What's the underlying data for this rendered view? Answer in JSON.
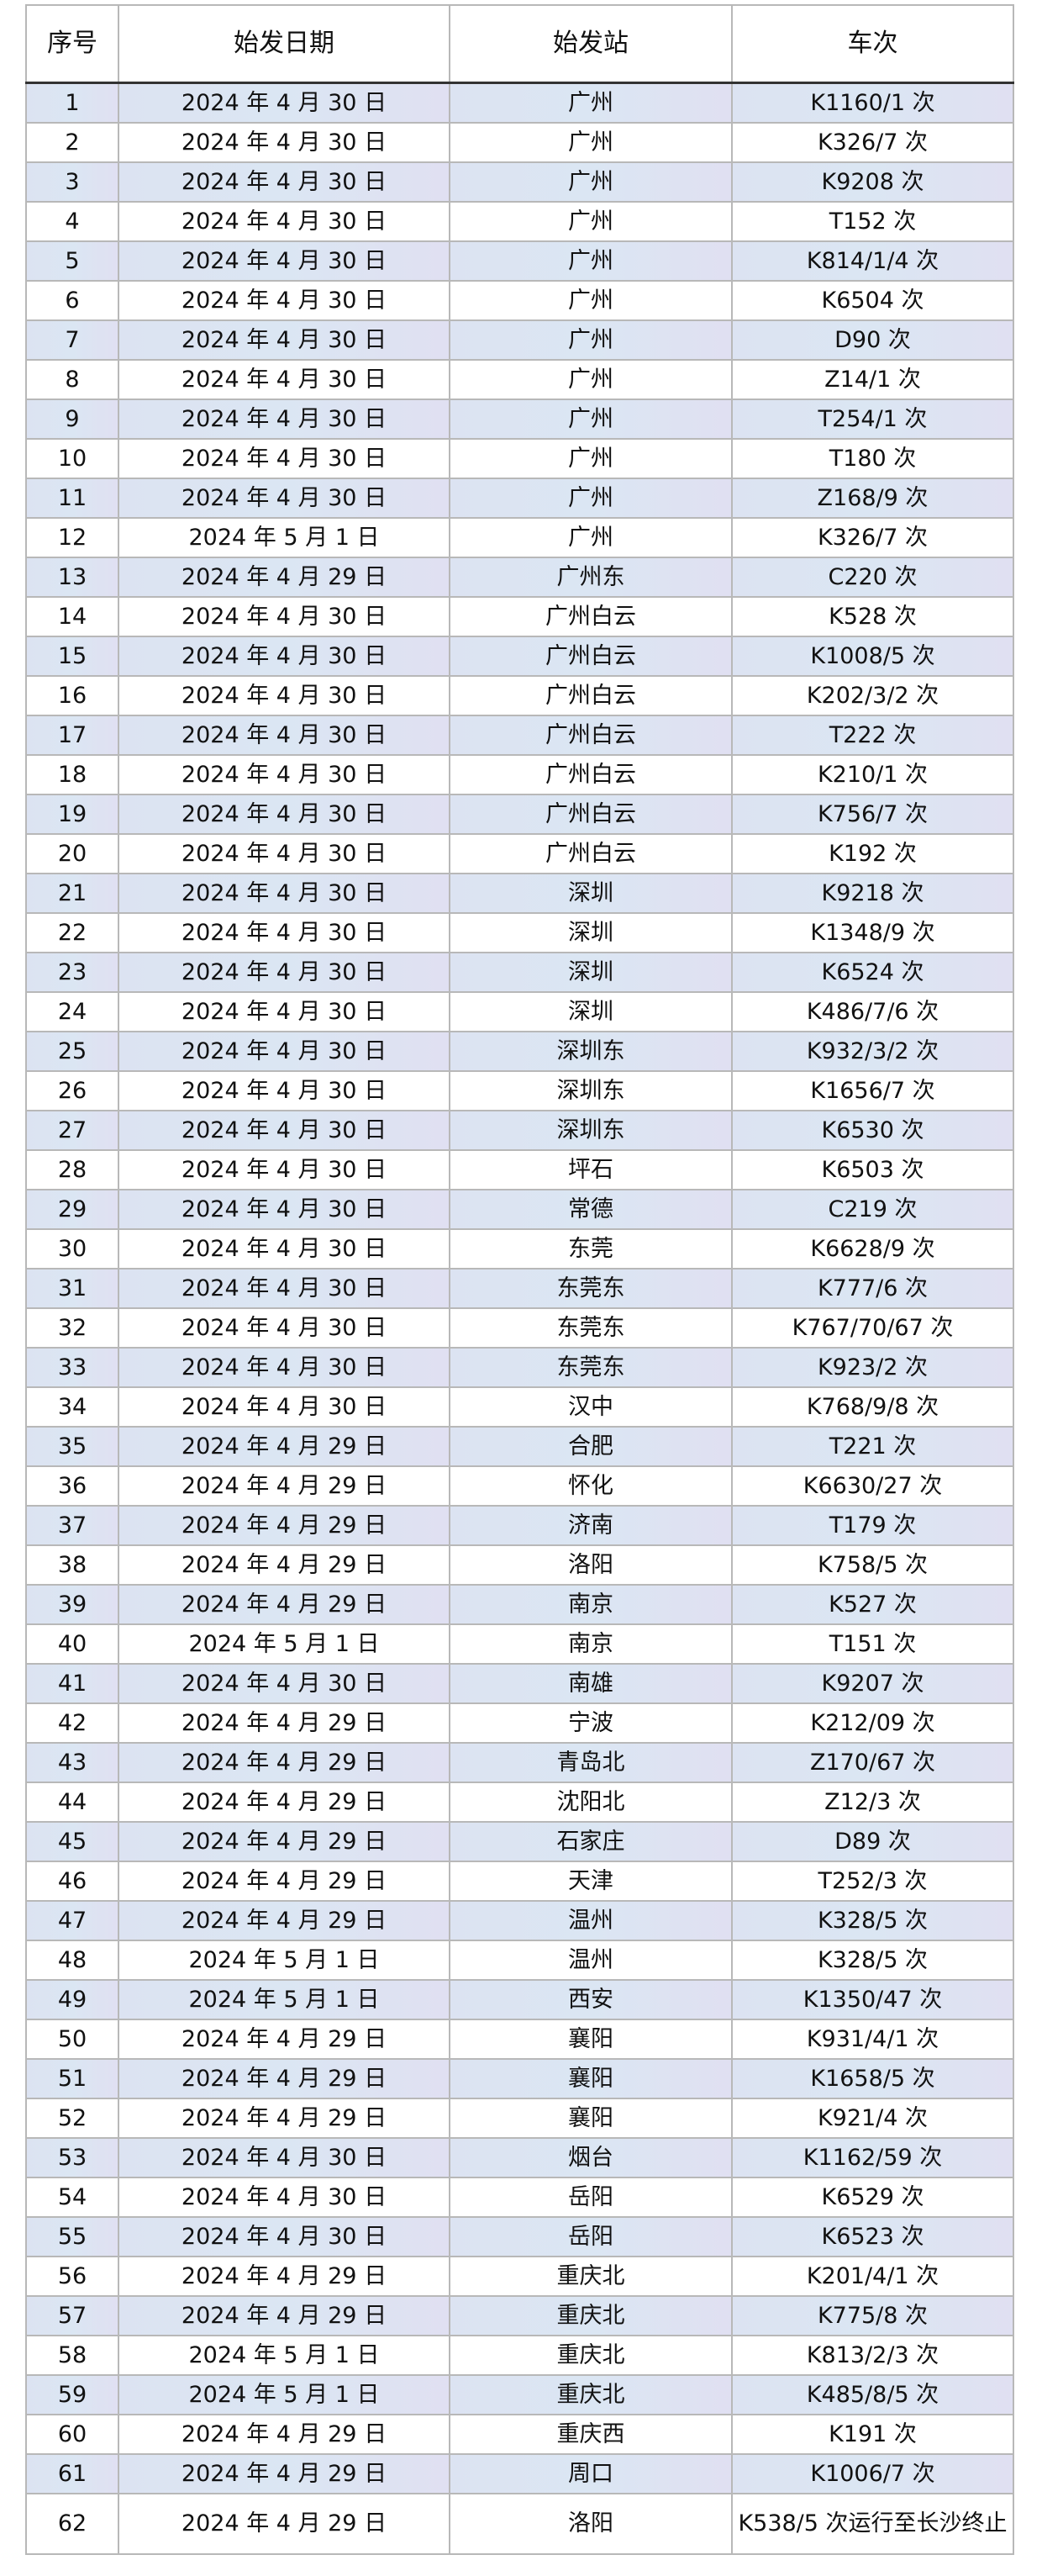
{
  "table": {
    "headers": [
      "序号",
      "始发日期",
      "始发站",
      "车次"
    ],
    "rows": [
      [
        "1",
        "2024 年 4 月 30 日",
        "广州",
        "K1160/1 次"
      ],
      [
        "2",
        "2024 年 4 月 30 日",
        "广州",
        "K326/7 次"
      ],
      [
        "3",
        "2024 年 4 月 30 日",
        "广州",
        "K9208 次"
      ],
      [
        "4",
        "2024 年 4 月 30 日",
        "广州",
        "T152 次"
      ],
      [
        "5",
        "2024 年 4 月 30 日",
        "广州",
        "K814/1/4 次"
      ],
      [
        "6",
        "2024 年 4 月 30 日",
        "广州",
        "K6504 次"
      ],
      [
        "7",
        "2024 年 4 月 30 日",
        "广州",
        "D90 次"
      ],
      [
        "8",
        "2024 年 4 月 30 日",
        "广州",
        "Z14/1 次"
      ],
      [
        "9",
        "2024 年 4 月 30 日",
        "广州",
        "T254/1 次"
      ],
      [
        "10",
        "2024 年 4 月 30 日",
        "广州",
        "T180 次"
      ],
      [
        "11",
        "2024 年 4 月 30 日",
        "广州",
        "Z168/9 次"
      ],
      [
        "12",
        "2024 年 5 月 1 日",
        "广州",
        "K326/7 次"
      ],
      [
        "13",
        "2024 年 4 月 29 日",
        "广州东",
        "C220 次"
      ],
      [
        "14",
        "2024 年 4 月 30 日",
        "广州白云",
        "K528 次"
      ],
      [
        "15",
        "2024 年 4 月 30 日",
        "广州白云",
        "K1008/5 次"
      ],
      [
        "16",
        "2024 年 4 月 30 日",
        "广州白云",
        "K202/3/2 次"
      ],
      [
        "17",
        "2024 年 4 月 30 日",
        "广州白云",
        "T222 次"
      ],
      [
        "18",
        "2024 年 4 月 30 日",
        "广州白云",
        "K210/1 次"
      ],
      [
        "19",
        "2024 年 4 月 30 日",
        "广州白云",
        "K756/7 次"
      ],
      [
        "20",
        "2024 年 4 月 30 日",
        "广州白云",
        "K192 次"
      ],
      [
        "21",
        "2024 年 4 月 30 日",
        "深圳",
        "K9218 次"
      ],
      [
        "22",
        "2024 年 4 月 30 日",
        "深圳",
        "K1348/9 次"
      ],
      [
        "23",
        "2024 年 4 月 30 日",
        "深圳",
        "K6524 次"
      ],
      [
        "24",
        "2024 年 4 月 30 日",
        "深圳",
        "K486/7/6 次"
      ],
      [
        "25",
        "2024 年 4 月 30 日",
        "深圳东",
        "K932/3/2 次"
      ],
      [
        "26",
        "2024 年 4 月 30 日",
        "深圳东",
        "K1656/7 次"
      ],
      [
        "27",
        "2024 年 4 月 30 日",
        "深圳东",
        "K6530 次"
      ],
      [
        "28",
        "2024 年 4 月 30 日",
        "坪石",
        "K6503 次"
      ],
      [
        "29",
        "2024 年 4 月 30 日",
        "常德",
        "C219 次"
      ],
      [
        "30",
        "2024 年 4 月 30 日",
        "东莞",
        "K6628/9 次"
      ],
      [
        "31",
        "2024 年 4 月 30 日",
        "东莞东",
        "K777/6 次"
      ],
      [
        "32",
        "2024 年 4 月 30 日",
        "东莞东",
        "K767/70/67 次"
      ],
      [
        "33",
        "2024 年 4 月 30 日",
        "东莞东",
        "K923/2 次"
      ],
      [
        "34",
        "2024 年 4 月 30 日",
        "汉中",
        "K768/9/8 次"
      ],
      [
        "35",
        "2024 年 4 月 29 日",
        "合肥",
        "T221 次"
      ],
      [
        "36",
        "2024 年 4 月 29 日",
        "怀化",
        "K6630/27 次"
      ],
      [
        "37",
        "2024 年 4 月 29 日",
        "济南",
        "T179 次"
      ],
      [
        "38",
        "2024 年 4 月 29 日",
        "洛阳",
        "K758/5 次"
      ],
      [
        "39",
        "2024 年 4 月 29 日",
        "南京",
        "K527 次"
      ],
      [
        "40",
        "2024 年 5 月 1 日",
        "南京",
        "T151 次"
      ],
      [
        "41",
        "2024 年 4 月 30 日",
        "南雄",
        "K9207 次"
      ],
      [
        "42",
        "2024 年 4 月 29 日",
        "宁波",
        "K212/09 次"
      ],
      [
        "43",
        "2024 年 4 月 29 日",
        "青岛北",
        "Z170/67 次"
      ],
      [
        "44",
        "2024 年 4 月 29 日",
        "沈阳北",
        "Z12/3 次"
      ],
      [
        "45",
        "2024 年 4 月 29 日",
        "石家庄",
        "D89 次"
      ],
      [
        "46",
        "2024 年 4 月 29 日",
        "天津",
        "T252/3 次"
      ],
      [
        "47",
        "2024 年 4 月 29 日",
        "温州",
        "K328/5 次"
      ],
      [
        "48",
        "2024 年 5 月 1 日",
        "温州",
        "K328/5 次"
      ],
      [
        "49",
        "2024 年 5 月 1 日",
        "西安",
        "K1350/47 次"
      ],
      [
        "50",
        "2024 年 4 月 29 日",
        "襄阳",
        "K931/4/1 次"
      ],
      [
        "51",
        "2024 年 4 月 29 日",
        "襄阳",
        "K1658/5 次"
      ],
      [
        "52",
        "2024 年 4 月 29 日",
        "襄阳",
        "K921/4 次"
      ],
      [
        "53",
        "2024 年 4 月 30 日",
        "烟台",
        "K1162/59 次"
      ],
      [
        "54",
        "2024 年 4 月 30 日",
        "岳阳",
        "K6529 次"
      ],
      [
        "55",
        "2024 年 4 月 30 日",
        "岳阳",
        "K6523 次"
      ],
      [
        "56",
        "2024 年 4 月 29 日",
        "重庆北",
        "K201/4/1 次"
      ],
      [
        "57",
        "2024 年 4 月 29 日",
        "重庆北",
        "K775/8 次"
      ],
      [
        "58",
        "2024 年 5 月 1 日",
        "重庆北",
        "K813/2/3 次"
      ],
      [
        "59",
        "2024 年 5 月 1 日",
        "重庆北",
        "K485/8/5 次"
      ],
      [
        "60",
        "2024 年 4 月 29 日",
        "重庆西",
        "K191 次"
      ],
      [
        "61",
        "2024 年 4 月 29 日",
        "周口",
        "K1006/7 次"
      ],
      [
        "62",
        "2024 年 4 月 29 日",
        "洛阳",
        "K538/5 次运行至长沙终止"
      ]
    ]
  },
  "colors": {
    "stripe": "#dce6f3",
    "border": "#b8b8b8"
  }
}
